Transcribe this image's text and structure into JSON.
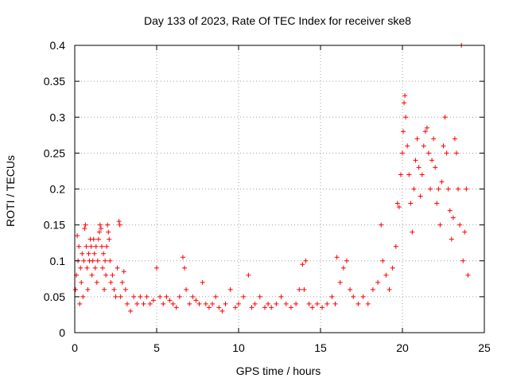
{
  "chart_data": {
    "type": "scatter",
    "title": "Day 133 of 2023, Rate Of TEC Index for receiver ske8",
    "xlabel": "GPS time / hours",
    "ylabel": "ROTI / TECUs",
    "xlim": [
      0,
      25
    ],
    "ylim": [
      0,
      0.4
    ],
    "xticks": [
      0,
      5,
      10,
      15,
      20,
      25
    ],
    "yticks": [
      0,
      0.05,
      0.1,
      0.15,
      0.2,
      0.25,
      0.3,
      0.35,
      0.4
    ],
    "xtick_labels": [
      "0",
      "5",
      "10",
      "15",
      "20",
      "25"
    ],
    "ytick_labels": [
      "0",
      "0.05",
      "0.1",
      "0.15",
      "0.2",
      "0.25",
      "0.3",
      "0.35",
      "0.4"
    ],
    "grid": true,
    "marker": "+",
    "color": "#ff0000",
    "series": [
      {
        "points": [
          [
            0.05,
            0.06
          ],
          [
            0.1,
            0.08
          ],
          [
            0.15,
            0.135
          ],
          [
            0.2,
            0.1
          ],
          [
            0.25,
            0.12
          ],
          [
            0.3,
            0.04
          ],
          [
            0.35,
            0.09
          ],
          [
            0.4,
            0.07
          ],
          [
            0.45,
            0.11
          ],
          [
            0.5,
            0.05
          ],
          [
            0.55,
            0.1
          ],
          [
            0.6,
            0.145
          ],
          [
            0.65,
            0.15
          ],
          [
            0.7,
            0.12
          ],
          [
            0.75,
            0.09
          ],
          [
            0.8,
            0.06
          ],
          [
            0.85,
            0.11
          ],
          [
            0.9,
            0.1
          ],
          [
            0.95,
            0.13
          ],
          [
            1.0,
            0.12
          ],
          [
            1.05,
            0.08
          ],
          [
            1.1,
            0.1
          ],
          [
            1.15,
            0.13
          ],
          [
            1.2,
            0.11
          ],
          [
            1.25,
            0.09
          ],
          [
            1.3,
            0.12
          ],
          [
            1.35,
            0.07
          ],
          [
            1.4,
            0.1
          ],
          [
            1.45,
            0.13
          ],
          [
            1.5,
            0.14
          ],
          [
            1.55,
            0.15
          ],
          [
            1.6,
            0.145
          ],
          [
            1.65,
            0.12
          ],
          [
            1.7,
            0.09
          ],
          [
            1.75,
            0.11
          ],
          [
            1.8,
            0.06
          ],
          [
            1.85,
            0.1
          ],
          [
            1.9,
            0.08
          ],
          [
            1.95,
            0.12
          ],
          [
            2.0,
            0.15
          ],
          [
            2.05,
            0.14
          ],
          [
            2.1,
            0.13
          ],
          [
            2.15,
            0.1
          ],
          [
            2.2,
            0.07
          ],
          [
            2.3,
            0.08
          ],
          [
            2.4,
            0.06
          ],
          [
            2.5,
            0.05
          ],
          [
            2.6,
            0.09
          ],
          [
            2.7,
            0.155
          ],
          [
            2.75,
            0.15
          ],
          [
            2.8,
            0.05
          ],
          [
            2.9,
            0.07
          ],
          [
            3.0,
            0.085
          ],
          [
            3.1,
            0.06
          ],
          [
            3.2,
            0.04
          ],
          [
            3.4,
            0.03
          ],
          [
            3.6,
            0.05
          ],
          [
            3.8,
            0.04
          ],
          [
            4.0,
            0.05
          ],
          [
            4.2,
            0.04
          ],
          [
            4.4,
            0.05
          ],
          [
            4.6,
            0.04
          ],
          [
            4.8,
            0.045
          ],
          [
            5.0,
            0.09
          ],
          [
            5.2,
            0.05
          ],
          [
            5.4,
            0.04
          ],
          [
            5.6,
            0.05
          ],
          [
            5.8,
            0.045
          ],
          [
            6.0,
            0.04
          ],
          [
            6.2,
            0.035
          ],
          [
            6.4,
            0.05
          ],
          [
            6.6,
            0.105
          ],
          [
            6.7,
            0.09
          ],
          [
            6.8,
            0.06
          ],
          [
            7.0,
            0.04
          ],
          [
            7.2,
            0.05
          ],
          [
            7.4,
            0.045
          ],
          [
            7.6,
            0.04
          ],
          [
            7.8,
            0.07
          ],
          [
            8.0,
            0.04
          ],
          [
            8.2,
            0.035
          ],
          [
            8.4,
            0.04
          ],
          [
            8.6,
            0.05
          ],
          [
            8.8,
            0.035
          ],
          [
            9.0,
            0.03
          ],
          [
            9.2,
            0.04
          ],
          [
            9.5,
            0.06
          ],
          [
            9.8,
            0.035
          ],
          [
            10.0,
            0.04
          ],
          [
            10.3,
            0.05
          ],
          [
            10.6,
            0.08
          ],
          [
            10.8,
            0.035
          ],
          [
            11.0,
            0.04
          ],
          [
            11.3,
            0.05
          ],
          [
            11.6,
            0.035
          ],
          [
            11.8,
            0.04
          ],
          [
            12.0,
            0.035
          ],
          [
            12.3,
            0.04
          ],
          [
            12.6,
            0.05
          ],
          [
            12.9,
            0.04
          ],
          [
            13.2,
            0.035
          ],
          [
            13.5,
            0.04
          ],
          [
            13.7,
            0.06
          ],
          [
            13.9,
            0.095
          ],
          [
            14.0,
            0.06
          ],
          [
            14.1,
            0.1
          ],
          [
            14.3,
            0.04
          ],
          [
            14.5,
            0.035
          ],
          [
            14.8,
            0.04
          ],
          [
            15.1,
            0.035
          ],
          [
            15.4,
            0.04
          ],
          [
            15.7,
            0.05
          ],
          [
            15.9,
            0.04
          ],
          [
            16.0,
            0.105
          ],
          [
            16.2,
            0.07
          ],
          [
            16.4,
            0.09
          ],
          [
            16.6,
            0.1
          ],
          [
            16.8,
            0.06
          ],
          [
            17.0,
            0.05
          ],
          [
            17.3,
            0.04
          ],
          [
            17.6,
            0.05
          ],
          [
            17.9,
            0.04
          ],
          [
            18.2,
            0.06
          ],
          [
            18.5,
            0.07
          ],
          [
            18.7,
            0.15
          ],
          [
            18.8,
            0.1
          ],
          [
            19.0,
            0.08
          ],
          [
            19.2,
            0.06
          ],
          [
            19.4,
            0.09
          ],
          [
            19.6,
            0.12
          ],
          [
            19.7,
            0.18
          ],
          [
            19.8,
            0.175
          ],
          [
            19.9,
            0.22
          ],
          [
            20.0,
            0.25
          ],
          [
            20.05,
            0.28
          ],
          [
            20.1,
            0.32
          ],
          [
            20.15,
            0.33
          ],
          [
            20.2,
            0.3
          ],
          [
            20.3,
            0.26
          ],
          [
            20.4,
            0.22
          ],
          [
            20.5,
            0.18
          ],
          [
            20.6,
            0.14
          ],
          [
            20.7,
            0.2
          ],
          [
            20.8,
            0.24
          ],
          [
            20.9,
            0.27
          ],
          [
            21.0,
            0.23
          ],
          [
            21.1,
            0.19
          ],
          [
            21.2,
            0.22
          ],
          [
            21.3,
            0.26
          ],
          [
            21.4,
            0.28
          ],
          [
            21.5,
            0.285
          ],
          [
            21.6,
            0.25
          ],
          [
            21.7,
            0.2
          ],
          [
            21.8,
            0.24
          ],
          [
            21.9,
            0.27
          ],
          [
            22.0,
            0.23
          ],
          [
            22.1,
            0.18
          ],
          [
            22.2,
            0.2
          ],
          [
            22.3,
            0.15
          ],
          [
            22.4,
            0.21
          ],
          [
            22.5,
            0.26
          ],
          [
            22.6,
            0.3
          ],
          [
            22.7,
            0.25
          ],
          [
            22.8,
            0.2
          ],
          [
            22.9,
            0.17
          ],
          [
            23.0,
            0.13
          ],
          [
            23.1,
            0.16
          ],
          [
            23.2,
            0.27
          ],
          [
            23.3,
            0.25
          ],
          [
            23.4,
            0.2
          ],
          [
            23.5,
            0.15
          ],
          [
            23.6,
            0.4
          ],
          [
            23.7,
            0.1
          ],
          [
            23.8,
            0.14
          ],
          [
            23.9,
            0.2
          ],
          [
            24.0,
            0.08
          ]
        ]
      }
    ]
  }
}
